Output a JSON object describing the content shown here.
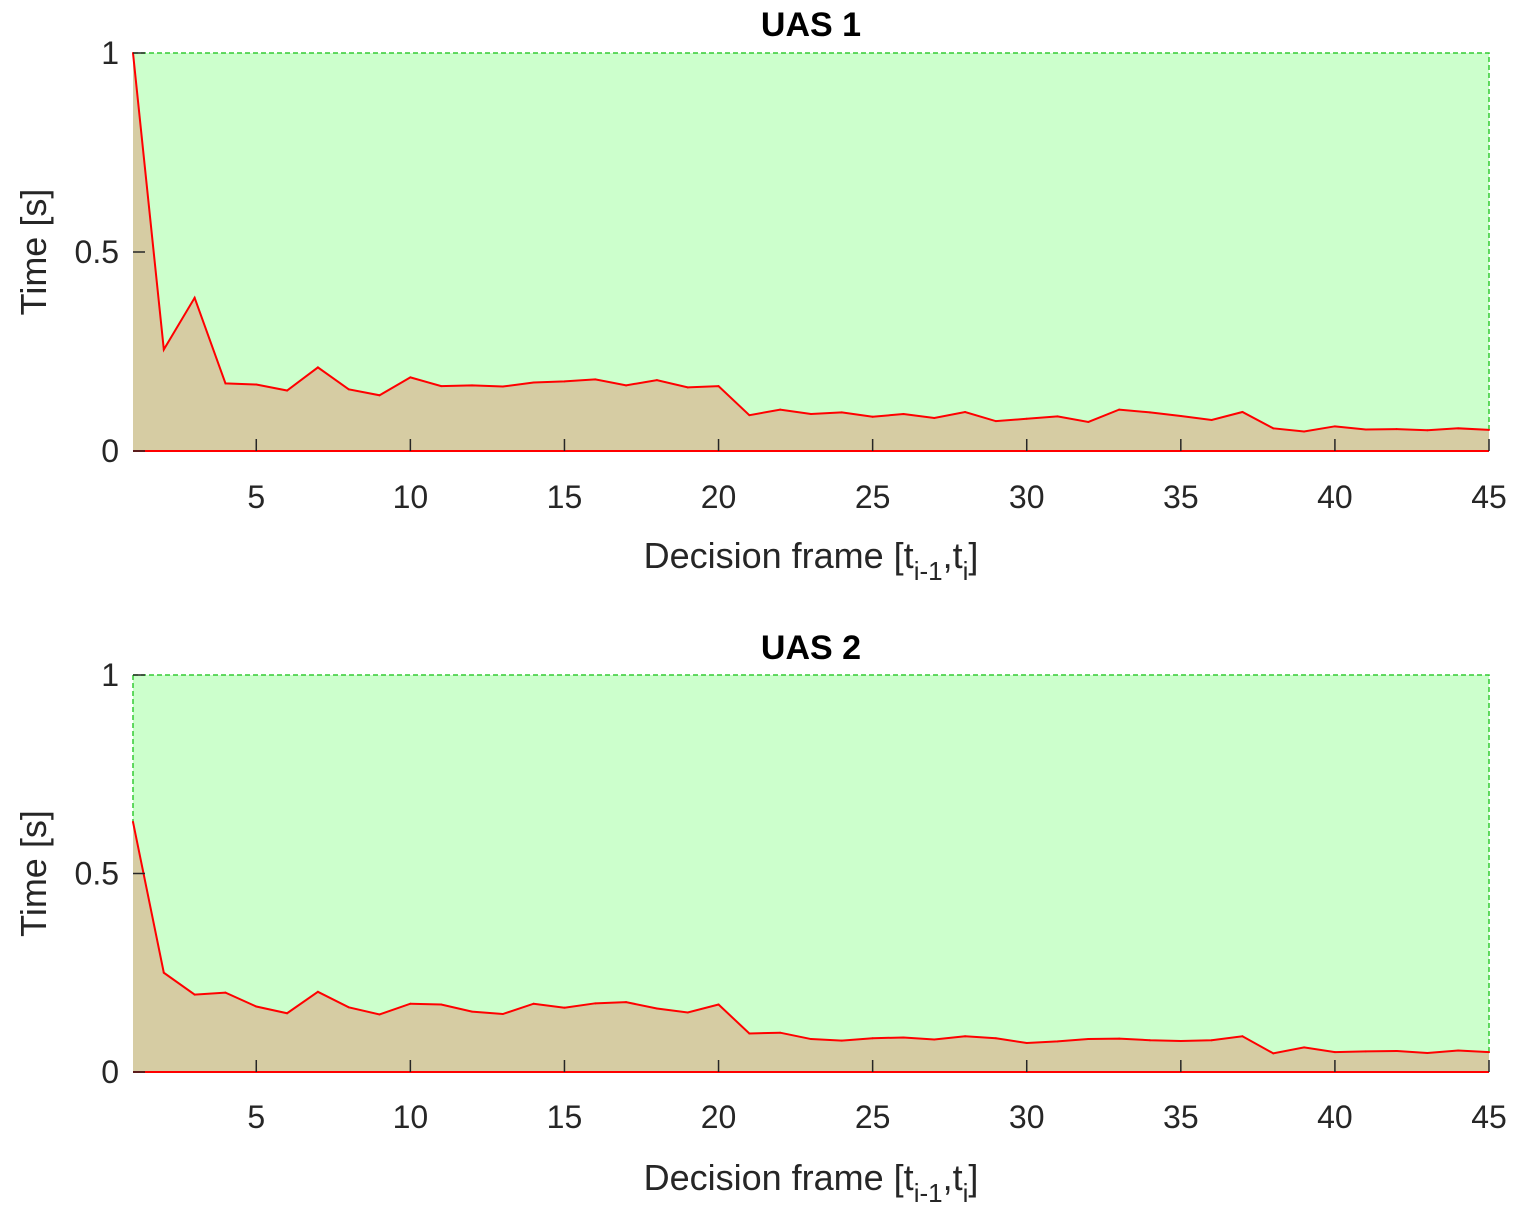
{
  "colors": {
    "upper_fill": "#ccffcc",
    "upper_edge": "#33cc33",
    "lower_fill": "#d6cca3",
    "line": "#ff0000",
    "axis": "#262626"
  },
  "chart_data": [
    {
      "type": "area",
      "title": "UAS 1",
      "xlabel": {
        "main": "Decision frame [t",
        "sub1": "i-1",
        "mid": ",t",
        "sub2": "i",
        "end": "]"
      },
      "ylabel": "Time [s]",
      "xlim": [
        1,
        45
      ],
      "ylim": [
        0,
        1
      ],
      "xticks": [
        5,
        10,
        15,
        20,
        25,
        30,
        35,
        40,
        45
      ],
      "yticks": [
        0,
        0.5,
        1
      ],
      "ytick_labels": [
        "0",
        "0.5",
        "1"
      ],
      "grid": false,
      "series": [
        {
          "x": [
            1,
            2,
            3,
            4,
            5,
            6,
            7,
            8,
            9,
            10,
            11,
            12,
            13,
            14,
            15,
            16,
            17,
            18,
            19,
            20,
            21,
            22,
            23,
            24,
            25,
            26,
            27,
            28,
            29,
            30,
            31,
            32,
            33,
            34,
            35,
            36,
            37,
            38,
            39,
            40,
            41,
            42,
            43,
            44,
            45
          ],
          "values": [
            1.0,
            0.255,
            0.385,
            0.17,
            0.167,
            0.152,
            0.21,
            0.155,
            0.14,
            0.185,
            0.163,
            0.165,
            0.162,
            0.172,
            0.175,
            0.18,
            0.165,
            0.178,
            0.16,
            0.163,
            0.09,
            0.104,
            0.093,
            0.097,
            0.086,
            0.093,
            0.083,
            0.098,
            0.075,
            0.081,
            0.087,
            0.073,
            0.104,
            0.097,
            0.088,
            0.078,
            0.098,
            0.057,
            0.049,
            0.062,
            0.054,
            0.055,
            0.052,
            0.057,
            0.053
          ],
          "upper_bound": 1.0
        }
      ]
    },
    {
      "type": "area",
      "title": "UAS 2",
      "xlabel": {
        "main": "Decision frame [t",
        "sub1": "i-1",
        "mid": ",t",
        "sub2": "i",
        "end": "]"
      },
      "ylabel": "Time [s]",
      "xlim": [
        1,
        45
      ],
      "ylim": [
        0,
        1
      ],
      "xticks": [
        5,
        10,
        15,
        20,
        25,
        30,
        35,
        40,
        45
      ],
      "yticks": [
        0,
        0.5,
        1
      ],
      "ytick_labels": [
        "0",
        "0.5",
        "1"
      ],
      "grid": false,
      "series": [
        {
          "x": [
            1,
            2,
            3,
            4,
            5,
            6,
            7,
            8,
            9,
            10,
            11,
            12,
            13,
            14,
            15,
            16,
            17,
            18,
            19,
            20,
            21,
            22,
            23,
            24,
            25,
            26,
            27,
            28,
            29,
            30,
            31,
            32,
            33,
            34,
            35,
            36,
            37,
            38,
            39,
            40,
            41,
            42,
            43,
            44,
            45
          ],
          "values": [
            0.63,
            0.25,
            0.195,
            0.2,
            0.165,
            0.148,
            0.202,
            0.163,
            0.145,
            0.172,
            0.17,
            0.152,
            0.146,
            0.172,
            0.162,
            0.173,
            0.176,
            0.16,
            0.15,
            0.17,
            0.097,
            0.099,
            0.083,
            0.079,
            0.085,
            0.087,
            0.082,
            0.09,
            0.085,
            0.073,
            0.077,
            0.083,
            0.084,
            0.08,
            0.078,
            0.08,
            0.09,
            0.047,
            0.062,
            0.05,
            0.052,
            0.053,
            0.048,
            0.054,
            0.05
          ],
          "upper_bound": 1.0
        }
      ]
    }
  ]
}
